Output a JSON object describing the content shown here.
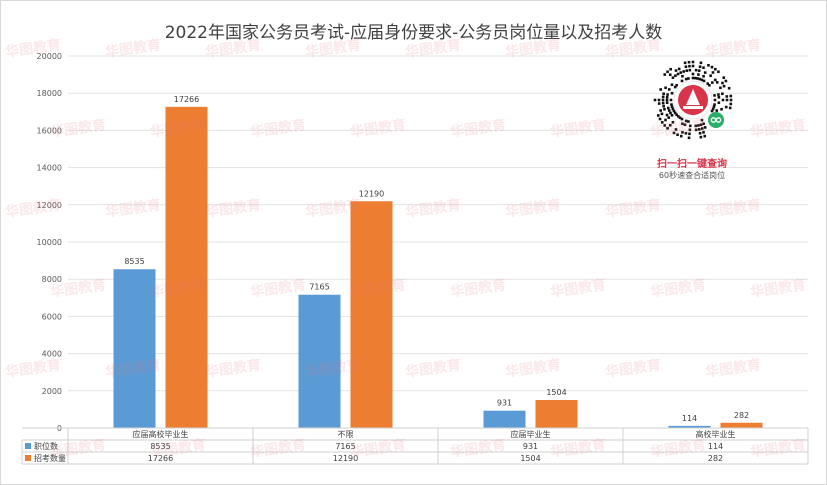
{
  "chart_data": {
    "type": "bar",
    "title": "2022年国家公务员考试-应届身份要求-公务员岗位量以及招考人数",
    "categories": [
      "应届高校毕业生",
      "不限",
      "应届毕业生",
      "高校毕业生"
    ],
    "series": [
      {
        "name": "职位数",
        "color": "#5b9bd5",
        "values": [
          8535,
          7165,
          931,
          114
        ]
      },
      {
        "name": "招考数量",
        "color": "#ed7d31",
        "values": [
          17266,
          12190,
          1504,
          282
        ]
      }
    ],
    "ylim": [
      0,
      20000
    ],
    "yticks": [
      0,
      2000,
      4000,
      6000,
      8000,
      10000,
      12000,
      14000,
      16000,
      18000,
      20000
    ],
    "grid": true,
    "legend": "data-table"
  },
  "promo": {
    "cta": "扫一扫一键查询",
    "sub": "60秒速查合适岗位",
    "icon": "wechat-mini-program-qr"
  },
  "watermark": "华图教育"
}
